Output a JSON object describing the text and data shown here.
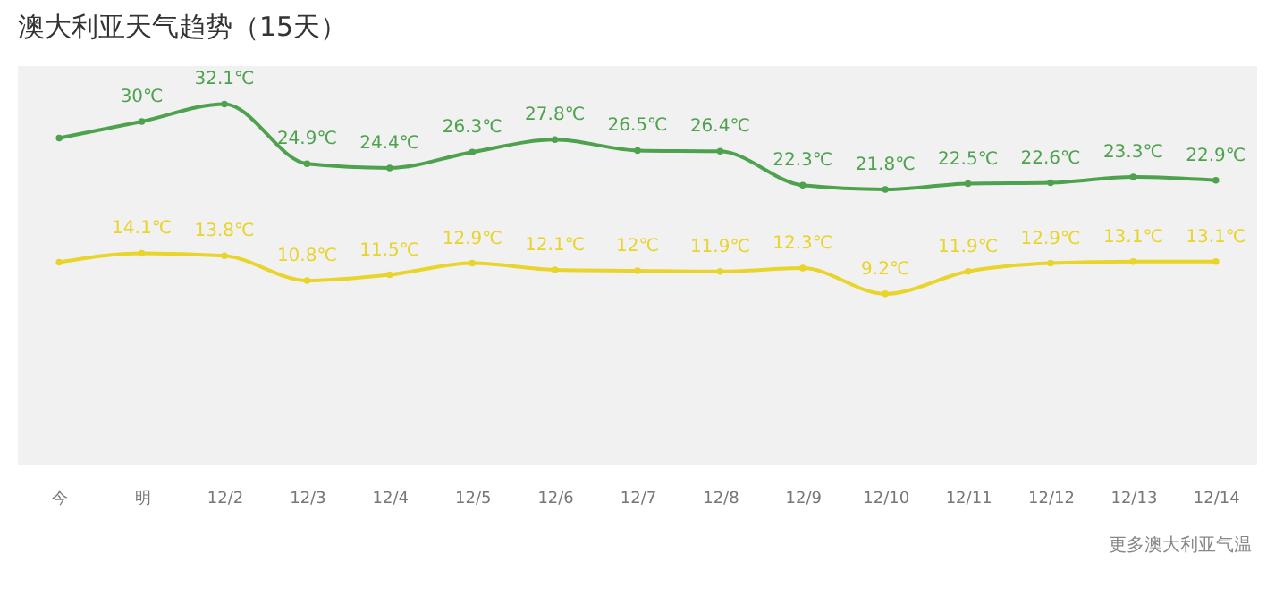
{
  "chart_data": {
    "type": "line",
    "title": "澳大利亚天气趋势（15天）",
    "categories": [
      "今",
      "明",
      "12/2",
      "12/3",
      "12/4",
      "12/5",
      "12/6",
      "12/7",
      "12/8",
      "12/9",
      "12/10",
      "12/11",
      "12/12",
      "12/13",
      "12/14"
    ],
    "series": [
      {
        "color": "#4ea24e",
        "values": [
          28,
          30,
          32.1,
          24.9,
          24.4,
          26.3,
          27.8,
          26.5,
          26.4,
          22.3,
          21.8,
          22.5,
          22.6,
          23.3,
          22.9
        ],
        "value_labels": [
          null,
          "30℃",
          "32.1℃",
          "24.9℃",
          "24.4℃",
          "26.3℃",
          "27.8℃",
          "26.5℃",
          "26.4℃",
          "22.3℃",
          "21.8℃",
          "22.5℃",
          "22.6℃",
          "23.3℃",
          "22.9℃"
        ]
      },
      {
        "color": "#e8d42a",
        "values": [
          13,
          14.1,
          13.8,
          10.8,
          11.5,
          12.9,
          12.1,
          12,
          11.9,
          12.3,
          9.2,
          11.9,
          12.9,
          13.1,
          13.1
        ],
        "value_labels": [
          null,
          "14.1℃",
          "13.8℃",
          "10.8℃",
          "11.5℃",
          "12.9℃",
          "12.1℃",
          "12℃",
          "11.9℃",
          "12.3℃",
          "9.2℃",
          "11.9℃",
          "12.9℃",
          "13.1℃",
          "13.1℃"
        ]
      }
    ],
    "marker": "circle",
    "grid": false,
    "annotations": [
      "更多澳大利亚气温"
    ]
  }
}
